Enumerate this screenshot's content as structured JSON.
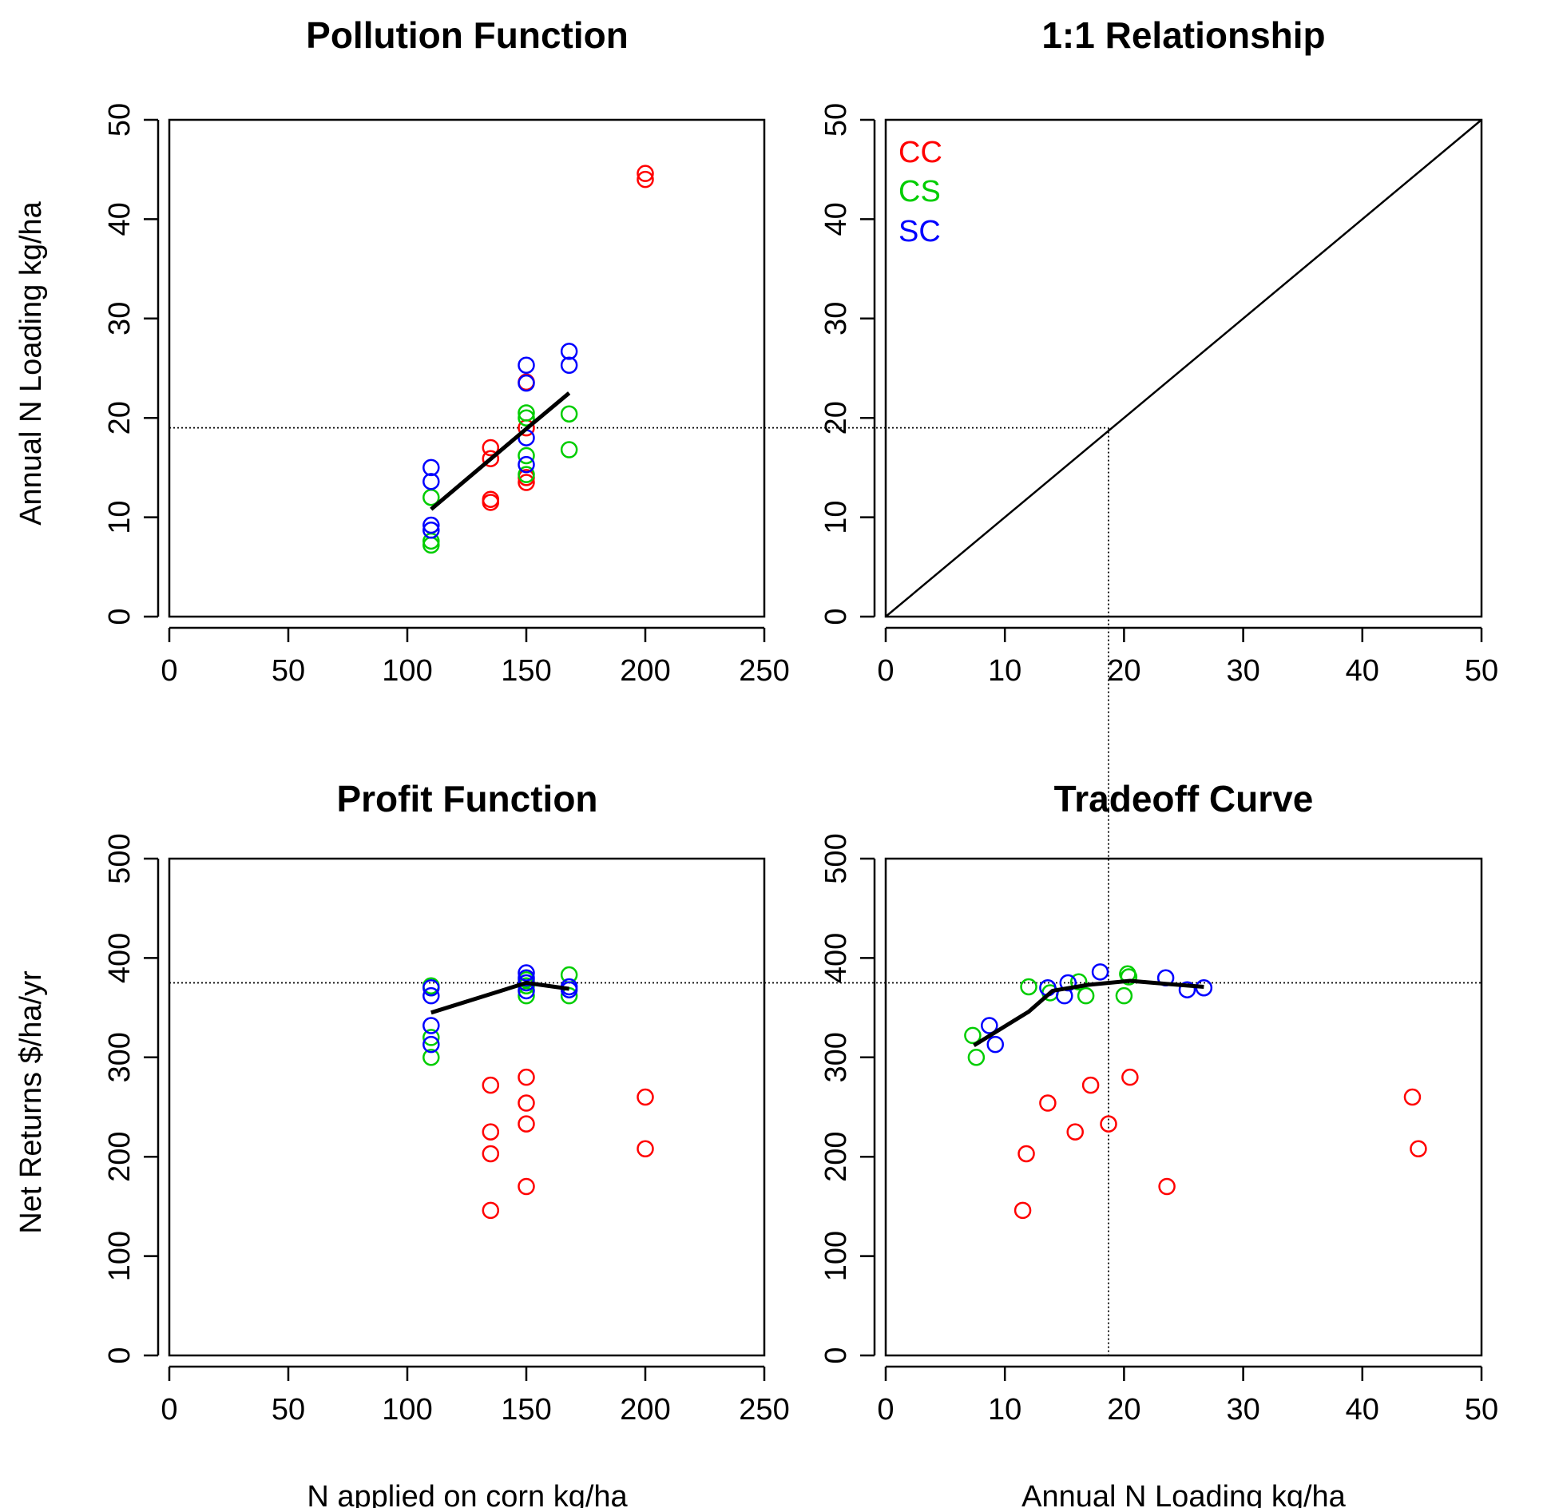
{
  "colors": {
    "CC": "#FF0000",
    "CS": "#00CD00",
    "SC": "#0000FF",
    "line": "#000000"
  },
  "shared_labels": {
    "y_top": "Annual N Loading kg/ha",
    "y_bottom": "Net Returns $/ha/yr",
    "x_left": "N applied on corn kg/ha",
    "x_right": "Annual N Loading kg/ha"
  },
  "chart_data": [
    {
      "id": "pollution",
      "type": "scatter",
      "title": "Pollution Function",
      "xlabel": "N applied on corn kg/ha",
      "ylabel": "Annual N Loading kg/ha",
      "xlim": [
        0,
        250
      ],
      "ylim": [
        0,
        50
      ],
      "xticks": [
        0,
        50,
        100,
        150,
        200,
        250
      ],
      "yticks": [
        0,
        10,
        20,
        30,
        40,
        50
      ],
      "series": [
        {
          "name": "CC",
          "points": [
            [
              135,
              17.0
            ],
            [
              135,
              15.9
            ],
            [
              135,
              11.8
            ],
            [
              135,
              11.5
            ],
            [
              150,
              23.6
            ],
            [
              150,
              19.0
            ],
            [
              150,
              14.0
            ],
            [
              150,
              13.5
            ],
            [
              200,
              44.6
            ],
            [
              200,
              44.0
            ]
          ]
        },
        {
          "name": "CS",
          "points": [
            [
              110,
              12.0
            ],
            [
              110,
              7.6
            ],
            [
              110,
              7.2
            ],
            [
              150,
              20.5
            ],
            [
              150,
              20.0
            ],
            [
              150,
              16.2
            ],
            [
              150,
              14.3
            ],
            [
              168,
              20.4
            ],
            [
              168,
              16.8
            ]
          ]
        },
        {
          "name": "SC",
          "points": [
            [
              110,
              15.0
            ],
            [
              110,
              13.6
            ],
            [
              110,
              9.2
            ],
            [
              110,
              8.7
            ],
            [
              150,
              25.3
            ],
            [
              150,
              23.5
            ],
            [
              150,
              18.0
            ],
            [
              150,
              15.3
            ],
            [
              168,
              26.7
            ],
            [
              168,
              25.3
            ]
          ]
        }
      ],
      "fit_line": [
        [
          110,
          10.8
        ],
        [
          150,
          18.9
        ],
        [
          168,
          22.5
        ]
      ],
      "ref_hline": 19,
      "ref_hline_extends_into_next_panel": true
    },
    {
      "id": "one_to_one",
      "type": "line",
      "title": "1:1 Relationship",
      "xlim": [
        0,
        50
      ],
      "ylim": [
        0,
        50
      ],
      "xticks": [
        0,
        10,
        20,
        30,
        40,
        50
      ],
      "yticks": [
        0,
        10,
        20,
        30,
        40,
        50
      ],
      "line": [
        [
          0,
          0
        ],
        [
          50,
          50
        ]
      ],
      "ref_point": [
        18.7,
        19
      ],
      "legend": {
        "placement": "top-left",
        "entries": [
          "CC",
          "CS",
          "SC"
        ]
      }
    },
    {
      "id": "profit",
      "type": "scatter",
      "title": "Profit Function",
      "xlabel": "N applied on corn kg/ha",
      "ylabel": "Net Returns $/ha/yr",
      "xlim": [
        0,
        250
      ],
      "ylim": [
        0,
        500
      ],
      "xticks": [
        0,
        50,
        100,
        150,
        200,
        250
      ],
      "yticks": [
        0,
        100,
        200,
        300,
        400,
        500
      ],
      "series": [
        {
          "name": "CC",
          "points": [
            [
              135,
              272
            ],
            [
              135,
              225
            ],
            [
              135,
              203
            ],
            [
              135,
              146
            ],
            [
              150,
              280
            ],
            [
              150,
              254
            ],
            [
              150,
              233
            ],
            [
              150,
              170
            ],
            [
              200,
              260
            ],
            [
              200,
              208
            ]
          ]
        },
        {
          "name": "CS",
          "points": [
            [
              110,
              372
            ],
            [
              110,
              320
            ],
            [
              110,
              300
            ],
            [
              150,
              378
            ],
            [
              150,
              372
            ],
            [
              150,
              362
            ],
            [
              168,
              383
            ],
            [
              168,
              362
            ]
          ]
        },
        {
          "name": "SC",
          "points": [
            [
              110,
              370
            ],
            [
              110,
              362
            ],
            [
              110,
              332
            ],
            [
              110,
              313
            ],
            [
              150,
              385
            ],
            [
              150,
              380
            ],
            [
              150,
              375
            ],
            [
              150,
              367
            ],
            [
              168,
              371
            ],
            [
              168,
              368
            ]
          ]
        }
      ],
      "fit_line": [
        [
          110,
          345
        ],
        [
          150,
          375
        ],
        [
          168,
          369
        ]
      ],
      "ref_hline": 375
    },
    {
      "id": "tradeoff",
      "type": "scatter",
      "title": "Tradeoff Curve",
      "xlabel": "Annual N Loading kg/ha",
      "xlim": [
        0,
        50
      ],
      "ylim": [
        0,
        500
      ],
      "xticks": [
        0,
        10,
        20,
        30,
        40,
        50
      ],
      "yticks": [
        0,
        100,
        200,
        300,
        400,
        500
      ],
      "series": [
        {
          "name": "CC",
          "points": [
            [
              17.2,
              272
            ],
            [
              20.5,
              280
            ],
            [
              13.6,
              254
            ],
            [
              15.9,
              225
            ],
            [
              18.7,
              233
            ],
            [
              11.8,
              203
            ],
            [
              11.5,
              146
            ],
            [
              23.6,
              170
            ],
            [
              44.2,
              260
            ],
            [
              44.7,
              208
            ]
          ]
        },
        {
          "name": "CS",
          "points": [
            [
              7.3,
              322
            ],
            [
              7.6,
              300
            ],
            [
              12.0,
              371
            ],
            [
              13.8,
              365
            ],
            [
              16.2,
              376
            ],
            [
              16.8,
              362
            ],
            [
              20.0,
              362
            ],
            [
              20.3,
              384
            ],
            [
              20.4,
              381
            ]
          ]
        },
        {
          "name": "SC",
          "points": [
            [
              8.7,
              332
            ],
            [
              9.2,
              313
            ],
            [
              13.6,
              370
            ],
            [
              15.0,
              362
            ],
            [
              15.3,
              375
            ],
            [
              18.0,
              386
            ],
            [
              23.5,
              380
            ],
            [
              25.3,
              368
            ],
            [
              26.7,
              370
            ]
          ]
        }
      ],
      "fit_line": [
        [
          7.4,
          312
        ],
        [
          12,
          346
        ],
        [
          14,
          367
        ],
        [
          17,
          373
        ],
        [
          20.5,
          377
        ],
        [
          23.5,
          374
        ],
        [
          26.7,
          371
        ]
      ],
      "ref_hline": 375,
      "ref_vline": 18.7,
      "ref_vline_extends_to_top_panel": true
    }
  ]
}
